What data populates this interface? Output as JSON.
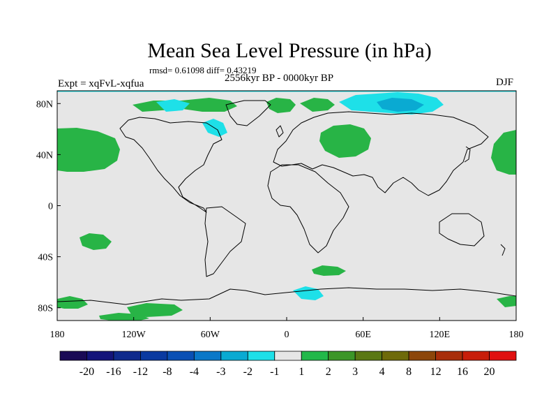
{
  "title": "Mean Sea Level Pressure (in hPa)",
  "stats": "rmsd= 0.61098 diff= 0.43219",
  "period": "2556kyr BP - 0000kyr BP",
  "experiment": "Expt = xqFvL-xqfua",
  "season": "DJF",
  "axes": {
    "lat_labels": [
      {
        "label": "80N",
        "value": 80
      },
      {
        "label": "40N",
        "value": 40
      },
      {
        "label": "0",
        "value": 0
      },
      {
        "label": "40S",
        "value": -40
      },
      {
        "label": "80S",
        "value": -80
      }
    ],
    "lon_labels": [
      {
        "label": "180",
        "value": -180
      },
      {
        "label": "120W",
        "value": -120
      },
      {
        "label": "60W",
        "value": -60
      },
      {
        "label": "0",
        "value": 0
      },
      {
        "label": "60E",
        "value": 60
      },
      {
        "label": "120E",
        "value": 120
      },
      {
        "label": "180",
        "value": 180
      }
    ]
  },
  "colorbar": {
    "labels": [
      "-20",
      "-16",
      "-12",
      "-8",
      "-4",
      "-3",
      "-2",
      "-1",
      "1",
      "2",
      "3",
      "4",
      "8",
      "12",
      "16",
      "20"
    ],
    "colors": [
      "#1a0a55",
      "#14147a",
      "#0f2a8c",
      "#0a3aa0",
      "#0a50b4",
      "#0a78c8",
      "#0aaad2",
      "#1ee0e8",
      "#e6e6e6",
      "#22b84a",
      "#3c9628",
      "#5a7814",
      "#6e6a0a",
      "#8c460a",
      "#a82e0a",
      "#c81e0a",
      "#e01010"
    ]
  },
  "colors": {
    "background_field": "#e6e6e6",
    "positive_anomaly": "#28b446",
    "negative_anomaly": "#1ee0e8",
    "strong_negative": "#0aaad2"
  }
}
